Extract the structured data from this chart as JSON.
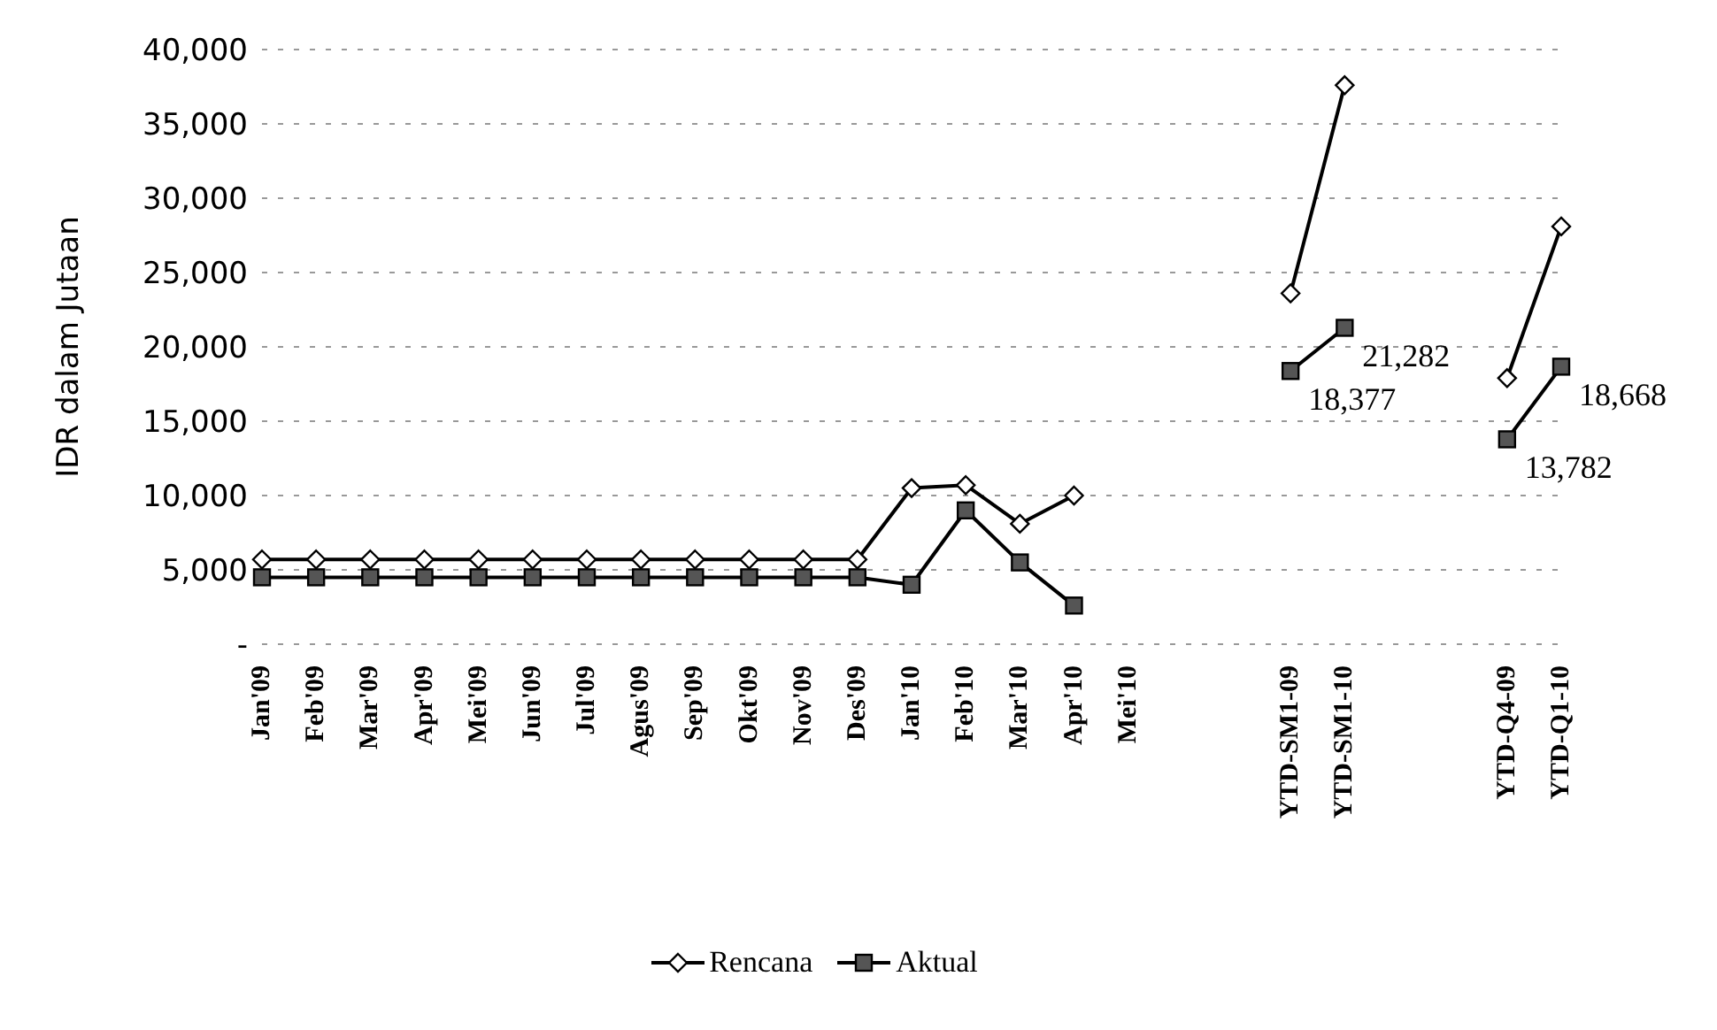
{
  "chart_data": {
    "type": "line",
    "ylabel": "IDR dalam Jutaan",
    "categories": [
      "Jan'09",
      "Feb'09",
      "Mar'09",
      "Apr'09",
      "Mei'09",
      "Jun'09",
      "Jul'09",
      "Agus'09",
      "Sep'09",
      "Okt'09",
      "Nov'09",
      "Des'09",
      "Jan'10",
      "Feb'10",
      "Mar'10",
      "Apr'10",
      "Mei'10",
      null,
      null,
      "YTD-SM1-09",
      "YTD-SM1-10",
      null,
      null,
      "YTD-Q4-09",
      "YTD-Q1-10"
    ],
    "series": [
      {
        "name": "Rencana",
        "color": "#000000",
        "marker": "diamond",
        "values": [
          5700,
          5700,
          5700,
          5700,
          5700,
          5700,
          5700,
          5700,
          5700,
          5700,
          5700,
          5700,
          10500,
          10700,
          8100,
          10000,
          null,
          null,
          null,
          23600,
          37600,
          null,
          null,
          17900,
          28100
        ]
      },
      {
        "name": "Aktual",
        "color": "#000000",
        "marker": "square",
        "values": [
          4500,
          4500,
          4500,
          4500,
          4500,
          4500,
          4500,
          4500,
          4500,
          4500,
          4500,
          4500,
          4000,
          9000,
          5500,
          2600,
          null,
          null,
          null,
          18377,
          21282,
          null,
          null,
          13782,
          18668
        ],
        "value_labels": [
          null,
          null,
          null,
          null,
          null,
          null,
          null,
          null,
          null,
          null,
          null,
          null,
          null,
          null,
          null,
          null,
          null,
          null,
          null,
          "18,377",
          "21,282",
          null,
          null,
          "13,782",
          "18,668"
        ]
      }
    ],
    "ylim": [
      0,
      40000
    ],
    "yticks": [
      {
        "value": 0,
        "label": "-"
      },
      {
        "value": 5000,
        "label": "5,000"
      },
      {
        "value": 10000,
        "label": "10,000"
      },
      {
        "value": 15000,
        "label": "15,000"
      },
      {
        "value": 20000,
        "label": "20,000"
      },
      {
        "value": 25000,
        "label": "25,000"
      },
      {
        "value": 30000,
        "label": "30,000"
      },
      {
        "value": 35000,
        "label": "35,000"
      },
      {
        "value": 40000,
        "label": "40,000"
      }
    ],
    "grid": "y",
    "legend": "bottom",
    "line_style": "solid"
  }
}
